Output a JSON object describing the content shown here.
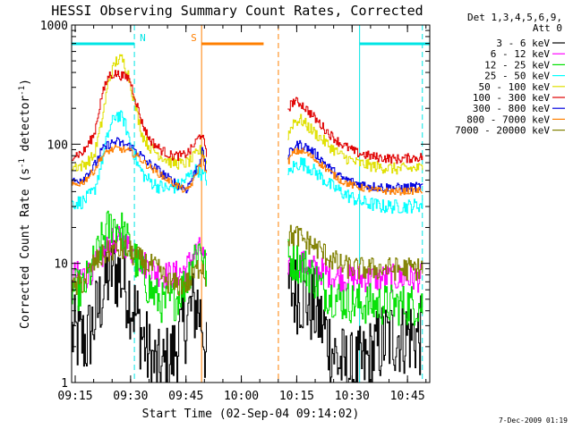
{
  "chart_data": {
    "type": "line",
    "title": "HESSI Observing Summary Count Rates, Corrected",
    "xlabel": "Start Time (02-Sep-04 09:14:02)",
    "ylabel_main": "Corrected Count Rate (s",
    "ylabel_sup1": "-1",
    "ylabel_mid": " detector",
    "ylabel_sup2": "-1",
    "ylabel_end": ")",
    "yscale": "log",
    "ylim": [
      1,
      1000
    ],
    "xlim_minutes": [
      0,
      97
    ],
    "x_ticks": [
      "09:15",
      "09:30",
      "09:45",
      "10:00",
      "10:15",
      "10:30",
      "10:45"
    ],
    "x_tick_minutes": [
      0.97,
      15.97,
      30.97,
      45.97,
      60.97,
      75.97,
      90.97
    ],
    "y_ticks": [
      {
        "label": "1",
        "value": 1
      },
      {
        "label": "10",
        "value": 10
      },
      {
        "label": "100",
        "value": 100
      },
      {
        "label": "1000",
        "value": 1000
      }
    ],
    "legend_header": [
      "Det 1,3,4,5,6,9,",
      "Att 0"
    ],
    "legend_position": "top-right-outside",
    "timestamp": "7-Dec-2009 01:19",
    "markers": [
      {
        "label": "N",
        "color": "#00e5e5",
        "bar": [
          0,
          17
        ],
        "lines": [
          {
            "x": 17,
            "dashed": true
          },
          {
            "x": 78,
            "dashed": false
          },
          {
            "x": 95,
            "dashed": true
          }
        ],
        "bars2": [
          [
            78,
            97
          ]
        ]
      },
      {
        "label": "S",
        "color": "#ff7f00",
        "bar": [
          35.2,
          52
        ],
        "lines": [
          {
            "x": 35.2,
            "dashed": false
          },
          {
            "x": 56,
            "dashed": true
          }
        ]
      }
    ],
    "gap_minutes": [
      36.5,
      58.5
    ],
    "series": [
      {
        "name": "3 - 6 keV",
        "color": "#000000",
        "noise": 0.35,
        "points": [
          [
            0,
            2.5
          ],
          [
            4,
            2.2
          ],
          [
            7,
            4
          ],
          [
            9,
            7
          ],
          [
            11,
            9
          ],
          [
            13,
            8
          ],
          [
            15,
            6
          ],
          [
            17,
            4
          ],
          [
            19,
            2.5
          ],
          [
            21,
            1.6
          ],
          [
            24,
            1.2
          ],
          [
            27,
            1.6
          ],
          [
            30,
            2.8
          ],
          [
            32,
            4
          ],
          [
            34,
            4.5
          ],
          [
            35.5,
            3
          ],
          [
            36.4,
            1.5
          ],
          [
            58.6,
            6
          ],
          [
            62,
            5.5
          ],
          [
            66,
            4
          ],
          [
            69,
            2.5
          ],
          [
            72,
            1.5
          ],
          [
            76,
            1.2
          ],
          [
            80,
            1.5
          ],
          [
            84,
            2.2
          ],
          [
            88,
            2.5
          ],
          [
            92,
            2.5
          ],
          [
            95,
            2.4
          ]
        ]
      },
      {
        "name": "6 - 12 keV",
        "color": "#ff00ff",
        "noise": 0.12,
        "points": [
          [
            0,
            8
          ],
          [
            4,
            8
          ],
          [
            7,
            10
          ],
          [
            10,
            14
          ],
          [
            12,
            16
          ],
          [
            14,
            15
          ],
          [
            16,
            13
          ],
          [
            18,
            11
          ],
          [
            21,
            9
          ],
          [
            25,
            8
          ],
          [
            28,
            8
          ],
          [
            31,
            9
          ],
          [
            33,
            12
          ],
          [
            35,
            13
          ],
          [
            36.4,
            9
          ],
          [
            58.6,
            10
          ],
          [
            62,
            10
          ],
          [
            66,
            9
          ],
          [
            70,
            8
          ],
          [
            74,
            7.5
          ],
          [
            80,
            7.5
          ],
          [
            88,
            7.5
          ],
          [
            95,
            7.5
          ]
        ]
      },
      {
        "name": "12 - 25 keV",
        "color": "#00e000",
        "noise": 0.18,
        "points": [
          [
            0,
            6
          ],
          [
            3,
            6
          ],
          [
            6,
            10
          ],
          [
            9,
            18
          ],
          [
            11,
            22
          ],
          [
            13,
            20
          ],
          [
            15,
            15
          ],
          [
            17,
            11
          ],
          [
            19,
            8
          ],
          [
            22,
            5.5
          ],
          [
            25,
            4.5
          ],
          [
            28,
            5
          ],
          [
            31,
            7
          ],
          [
            33,
            12
          ],
          [
            35,
            14
          ],
          [
            36.4,
            8
          ],
          [
            58.6,
            11
          ],
          [
            62,
            10
          ],
          [
            65,
            8
          ],
          [
            68,
            6
          ],
          [
            72,
            5
          ],
          [
            77,
            4.6
          ],
          [
            85,
            4.5
          ],
          [
            95,
            4.5
          ]
        ]
      },
      {
        "name": "25 - 50 keV",
        "color": "#00ffff",
        "noise": 0.06,
        "points": [
          [
            0,
            32
          ],
          [
            3,
            33
          ],
          [
            6,
            40
          ],
          [
            8,
            70
          ],
          [
            10,
            130
          ],
          [
            12,
            180
          ],
          [
            14,
            160
          ],
          [
            16,
            100
          ],
          [
            18,
            65
          ],
          [
            20,
            52
          ],
          [
            23,
            45
          ],
          [
            26,
            42
          ],
          [
            29,
            45
          ],
          [
            32,
            55
          ],
          [
            34,
            62
          ],
          [
            36.4,
            50
          ],
          [
            58.6,
            55
          ],
          [
            60,
            65
          ],
          [
            62,
            70
          ],
          [
            64,
            65
          ],
          [
            67,
            55
          ],
          [
            70,
            45
          ],
          [
            74,
            38
          ],
          [
            78,
            33
          ],
          [
            84,
            30
          ],
          [
            90,
            30
          ],
          [
            95,
            31
          ]
        ]
      },
      {
        "name": "50 - 100 keV",
        "color": "#e0e000",
        "noise": 0.05,
        "points": [
          [
            0,
            65
          ],
          [
            3,
            66
          ],
          [
            6,
            80
          ],
          [
            8,
            150
          ],
          [
            10,
            350
          ],
          [
            12,
            500
          ],
          [
            13.5,
            520
          ],
          [
            15,
            420
          ],
          [
            17,
            220
          ],
          [
            19,
            120
          ],
          [
            21,
            95
          ],
          [
            24,
            80
          ],
          [
            27,
            70
          ],
          [
            30,
            68
          ],
          [
            32,
            72
          ],
          [
            34,
            85
          ],
          [
            35.2,
            90
          ],
          [
            36.4,
            70
          ],
          [
            58.6,
            120
          ],
          [
            60,
            155
          ],
          [
            62,
            160
          ],
          [
            64,
            140
          ],
          [
            67,
            115
          ],
          [
            70,
            95
          ],
          [
            73,
            80
          ],
          [
            77,
            70
          ],
          [
            82,
            65
          ],
          [
            88,
            62
          ],
          [
            95,
            63
          ]
        ]
      },
      {
        "name": "100 - 300 keV",
        "color": "#e00000",
        "noise": 0.04,
        "points": [
          [
            0,
            80
          ],
          [
            3,
            85
          ],
          [
            6,
            120
          ],
          [
            8,
            250
          ],
          [
            10,
            380
          ],
          [
            12,
            390
          ],
          [
            14,
            370
          ],
          [
            15.5,
            360
          ],
          [
            17,
            250
          ],
          [
            19,
            150
          ],
          [
            21,
            110
          ],
          [
            24,
            90
          ],
          [
            27,
            80
          ],
          [
            30,
            80
          ],
          [
            32,
            88
          ],
          [
            34,
            110
          ],
          [
            35.2,
            125
          ],
          [
            36.4,
            80
          ],
          [
            58.6,
            200
          ],
          [
            60,
            230
          ],
          [
            62,
            220
          ],
          [
            64,
            190
          ],
          [
            67,
            150
          ],
          [
            70,
            120
          ],
          [
            73,
            100
          ],
          [
            77,
            85
          ],
          [
            82,
            78
          ],
          [
            88,
            75
          ],
          [
            95,
            78
          ]
        ]
      },
      {
        "name": "300 - 800 keV",
        "color": "#0000e0",
        "noise": 0.04,
        "points": [
          [
            0,
            48
          ],
          [
            3,
            52
          ],
          [
            6,
            65
          ],
          [
            8,
            88
          ],
          [
            10,
            100
          ],
          [
            12,
            105
          ],
          [
            14,
            100
          ],
          [
            16,
            95
          ],
          [
            18,
            85
          ],
          [
            20,
            72
          ],
          [
            23,
            62
          ],
          [
            26,
            52
          ],
          [
            29,
            45
          ],
          [
            31,
            42
          ],
          [
            33,
            55
          ],
          [
            35,
            80
          ],
          [
            35.2,
            90
          ],
          [
            36.4,
            60
          ],
          [
            58.6,
            80
          ],
          [
            60,
            95
          ],
          [
            62,
            100
          ],
          [
            64,
            92
          ],
          [
            67,
            78
          ],
          [
            70,
            62
          ],
          [
            73,
            52
          ],
          [
            77,
            47
          ],
          [
            82,
            44
          ],
          [
            88,
            43
          ],
          [
            95,
            44
          ]
        ]
      },
      {
        "name": "800 - 7000 keV",
        "color": "#ff7f00",
        "noise": 0.03,
        "points": [
          [
            0,
            45
          ],
          [
            3,
            48
          ],
          [
            6,
            60
          ],
          [
            8,
            78
          ],
          [
            10,
            88
          ],
          [
            12,
            92
          ],
          [
            14,
            90
          ],
          [
            16,
            86
          ],
          [
            18,
            78
          ],
          [
            20,
            68
          ],
          [
            23,
            58
          ],
          [
            26,
            50
          ],
          [
            29,
            44
          ],
          [
            31,
            40
          ],
          [
            33,
            50
          ],
          [
            35,
            72
          ],
          [
            35.2,
            85
          ],
          [
            36.4,
            55
          ],
          [
            58.6,
            72
          ],
          [
            60,
            85
          ],
          [
            62,
            88
          ],
          [
            64,
            82
          ],
          [
            67,
            70
          ],
          [
            70,
            58
          ],
          [
            73,
            49
          ],
          [
            77,
            44
          ],
          [
            82,
            41
          ],
          [
            88,
            40
          ],
          [
            95,
            41
          ]
        ]
      },
      {
        "name": "7000 - 20000 keV",
        "color": "#808000",
        "noise": 0.1,
        "points": [
          [
            0,
            6
          ],
          [
            3,
            7
          ],
          [
            6,
            10
          ],
          [
            9,
            12
          ],
          [
            11,
            13
          ],
          [
            13,
            13
          ],
          [
            15,
            13
          ],
          [
            17,
            11.5
          ],
          [
            20,
            10
          ],
          [
            23,
            9
          ],
          [
            26,
            7
          ],
          [
            29,
            6.5
          ],
          [
            32,
            7
          ],
          [
            34,
            9
          ],
          [
            35.2,
            10
          ],
          [
            36.4,
            7
          ],
          [
            58.6,
            17
          ],
          [
            61,
            17
          ],
          [
            64,
            15
          ],
          [
            67,
            13
          ],
          [
            70,
            11
          ],
          [
            73,
            9.5
          ],
          [
            77,
            9
          ],
          [
            82,
            9
          ],
          [
            88,
            9
          ],
          [
            95,
            9
          ]
        ]
      }
    ]
  }
}
